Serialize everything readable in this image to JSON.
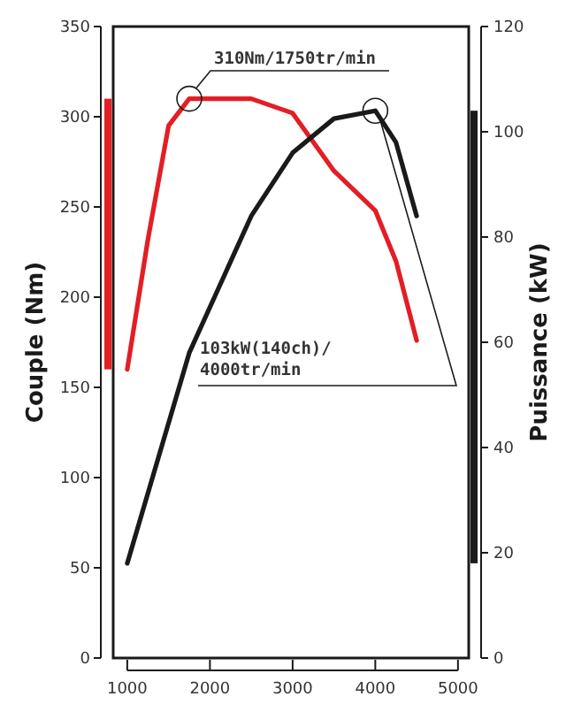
{
  "chart_data": {
    "type": "line",
    "ylabel": "Couple (Nm)",
    "y2label": "Puissance (kW)",
    "xlim": [
      830,
      5130
    ],
    "xticks": [
      1000,
      2000,
      3000,
      4000,
      5000
    ],
    "ylim": [
      0,
      350
    ],
    "yticks": [
      0,
      50,
      100,
      150,
      200,
      250,
      300,
      350
    ],
    "y2lim": [
      0,
      120
    ],
    "y2ticks": [
      0,
      20,
      40,
      60,
      80,
      100,
      120
    ],
    "grid": false,
    "marker": "none",
    "line_style": "solid",
    "series": [
      {
        "color": "#e31e24",
        "x": [
          1000,
          1250,
          1500,
          1750,
          2500,
          3000,
          3500,
          4000,
          4250,
          4500
        ],
        "values": [
          160,
          232,
          295,
          310,
          310,
          302,
          270,
          248,
          220,
          176
        ]
      },
      {
        "color": "#1a1a1a",
        "axis": "y2",
        "x": [
          1000,
          1750,
          2500,
          3000,
          3500,
          4000,
          4250,
          4500
        ],
        "values": [
          18,
          58,
          84,
          96,
          102.5,
          104,
          98,
          84
        ]
      }
    ],
    "annotations": [
      {
        "text": "310Nm/1750tr/min",
        "x": 1750,
        "y": 310
      },
      "103kW(140ch)/\n4000tr/min"
    ]
  }
}
